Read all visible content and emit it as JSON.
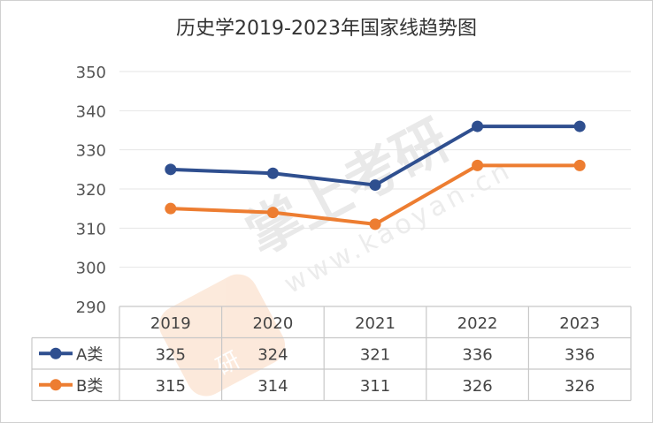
{
  "chart_data": {
    "type": "line",
    "title": "历史学2019-2023年国家线趋势图",
    "categories": [
      "2019",
      "2020",
      "2021",
      "2022",
      "2023"
    ],
    "series": [
      {
        "name": "A类",
        "values": [
          325,
          324,
          321,
          336,
          336
        ],
        "color": "#2f4f8f"
      },
      {
        "name": "B类",
        "values": [
          315,
          314,
          311,
          326,
          326
        ],
        "color": "#ed7d31"
      }
    ],
    "ylim": [
      290,
      350
    ],
    "yticks": [
      290,
      300,
      310,
      320,
      330,
      340,
      350
    ],
    "grid": true,
    "legend": "data-table"
  },
  "watermark": {
    "brand": "掌上考研",
    "url": "www.kaoyan.cn",
    "logo_text": "研"
  }
}
